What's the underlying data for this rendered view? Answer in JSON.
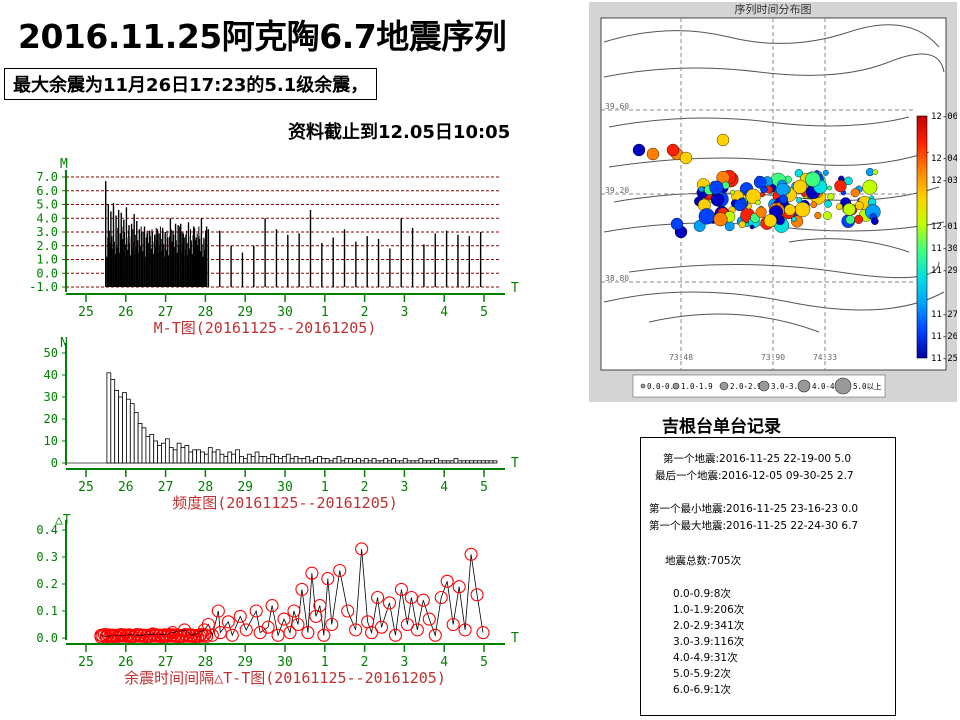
{
  "header": {
    "title": "2016.11.25阿克陶6.7地震序列",
    "subtitle_line1": "最大余震为11月26日17:23的5.1级余震，",
    "subtitle_line2": "资料截止到12.05日10:05"
  },
  "colors": {
    "axis_green": "#008000",
    "title_red": "#c03030",
    "grid_dark_red": "#8b0000",
    "circle_red": "#ff0000",
    "map_bg": "#d4d4d4"
  },
  "chart_data": [
    {
      "id": "mt",
      "type": "bar",
      "title": "M-T图(20161125--20161205)",
      "xlabel": "T",
      "ylabel": "M",
      "x_ticks": [
        "25",
        "26",
        "27",
        "28",
        "29",
        "30",
        "1",
        "2",
        "3",
        "4",
        "5"
      ],
      "y_ticks": [
        "-1.0",
        "0.0",
        "1.0",
        "2.0",
        "3.0",
        "4.0",
        "5.0",
        "6.0",
        "7.0"
      ],
      "ylim": [
        -1,
        7
      ],
      "grid": "dashed horizontal",
      "series_note": "dense magnitude sticks, largest 6.7 at 25 22:24",
      "values": [
        6.7,
        5.0,
        4.5,
        5.1,
        4.2,
        4.6,
        4.4,
        3.9,
        4.8,
        3.5,
        3.6,
        4.3,
        3.8,
        3.2,
        3.0,
        3.4,
        2.9,
        3.1,
        3.0,
        2.8,
        3.2,
        2.9,
        3.3,
        3.0,
        2.6,
        4.0,
        3.1,
        3.6,
        3.5,
        3.6,
        2.9,
        2.8,
        3.7,
        2.4,
        3.4,
        2.6,
        2.7,
        4.0,
        2.5,
        3.4,
        3.2,
        3.1,
        2.0,
        1.5,
        2.0,
        4.0,
        3.2,
        2.8,
        2.9,
        4.6,
        2.2,
        2.6,
        3.2,
        2.3,
        2.7,
        2.5,
        1.8,
        4.0,
        3.3,
        2.1,
        2.9,
        3.1,
        2.8,
        2.7,
        3.0
      ]
    },
    {
      "id": "freq",
      "type": "bar",
      "title": "频度图(20161125--20161205)",
      "xlabel": "T",
      "ylabel": "N",
      "x_ticks": [
        "25",
        "26",
        "27",
        "28",
        "29",
        "30",
        "1",
        "2",
        "3",
        "4",
        "5"
      ],
      "y_ticks": [
        "0",
        "10",
        "20",
        "30",
        "40",
        "50"
      ],
      "ylim": [
        0,
        50
      ],
      "values": [
        41,
        38,
        33,
        30,
        32,
        29,
        27,
        23,
        18,
        16,
        12,
        13,
        10,
        8,
        9,
        11,
        7,
        6,
        9,
        7,
        8,
        5,
        6,
        6,
        5,
        4,
        7,
        5,
        6,
        4,
        3,
        5,
        4,
        6,
        3,
        2,
        4,
        3,
        5,
        3,
        3,
        2,
        4,
        3,
        2,
        3,
        4,
        2,
        3,
        2,
        2,
        3,
        1,
        2,
        3,
        2,
        2,
        1,
        2,
        3,
        1,
        2,
        2,
        1,
        2,
        1,
        2,
        1,
        2,
        1,
        1,
        2,
        1,
        2,
        1,
        1,
        2,
        1,
        1,
        1,
        2,
        1,
        1,
        1,
        2,
        1,
        1,
        1,
        1,
        2,
        1,
        1,
        1,
        1,
        1,
        1,
        1,
        1,
        1,
        1
      ]
    },
    {
      "id": "dt",
      "type": "scatter",
      "title": "余震时间间隔△T-T图(20161125--20161205)",
      "xlabel": "T",
      "ylabel": "△T",
      "x_ticks": [
        "25",
        "26",
        "27",
        "28",
        "29",
        "30",
        "1",
        "2",
        "3",
        "4",
        "5"
      ],
      "y_ticks": [
        "0.0",
        "0.1",
        "0.2",
        "0.3",
        "0.4"
      ],
      "ylim": [
        0,
        0.4
      ],
      "xlim": [
        25,
        35
      ],
      "x": [
        25.3,
        25.45,
        25.6,
        25.8,
        26.0,
        26.3,
        26.6,
        26.9,
        27.1,
        27.4,
        27.6,
        27.9,
        28.0,
        28.1,
        28.25,
        28.3,
        28.5,
        28.6,
        28.8,
        28.95,
        29.2,
        29.3,
        29.5,
        29.6,
        29.75,
        29.9,
        30.05,
        30.15,
        30.25,
        30.35,
        30.5,
        30.6,
        30.7,
        30.8,
        30.9,
        31.0,
        31.1,
        31.3,
        31.5,
        31.7,
        31.85,
        32.0,
        32.1,
        32.25,
        32.35,
        32.55,
        32.7,
        32.85,
        33.0,
        33.1,
        33.25,
        33.4,
        33.55,
        33.7,
        33.85,
        34.0,
        34.15,
        34.3,
        34.45,
        34.6,
        34.75,
        34.9
      ],
      "values": [
        0.01,
        0.005,
        0.01,
        0.008,
        0.012,
        0.01,
        0.015,
        0.012,
        0.02,
        0.03,
        0.01,
        0.03,
        0.05,
        0.01,
        0.1,
        0.02,
        0.06,
        0.01,
        0.08,
        0.03,
        0.1,
        0.02,
        0.04,
        0.12,
        0.01,
        0.07,
        0.02,
        0.1,
        0.05,
        0.18,
        0.02,
        0.24,
        0.08,
        0.12,
        0.01,
        0.22,
        0.05,
        0.25,
        0.1,
        0.03,
        0.33,
        0.06,
        0.02,
        0.15,
        0.04,
        0.13,
        0.01,
        0.18,
        0.05,
        0.15,
        0.03,
        0.14,
        0.07,
        0.01,
        0.15,
        0.21,
        0.05,
        0.19,
        0.03,
        0.31,
        0.16,
        0.02
      ]
    },
    {
      "id": "map",
      "type": "scatter",
      "title": "序列时间分布图",
      "x_ticks": [
        "73.48",
        "73.90",
        "74.33"
      ],
      "y_ticks": [
        "39.60",
        "39.20",
        "38.80"
      ],
      "colorbar_ticks": [
        "12-06",
        "12-04",
        "12-03",
        "12-01",
        "11-30",
        "11-29",
        "11-27",
        "11-26",
        "11-25"
      ],
      "legend": [
        "0.0-0.9",
        "1.0-1.9",
        "2.0-2.9",
        "3.0-3.9",
        "4.0-4.9",
        "5.0以上"
      ]
    }
  ],
  "station": {
    "title": "吉根台单台记录",
    "lines": [
      "第一个地震:2016-11-25 22-19-00  5.0",
      "最后一个地震:2016-12-05 09-30-25  2.7",
      "第一个最小地震:2016-11-25 23-16-23  0.0",
      "第一个最大地震:2016-11-25 22-24-30  6.7",
      "地震总数:705次",
      "0.0-0.9:8次",
      "1.0-1.9:206次",
      "2.0-2.9:341次",
      "3.0-3.9:116次",
      "4.0-4.9:31次",
      "5.0-5.9:2次",
      "6.0-6.9:1次"
    ]
  }
}
